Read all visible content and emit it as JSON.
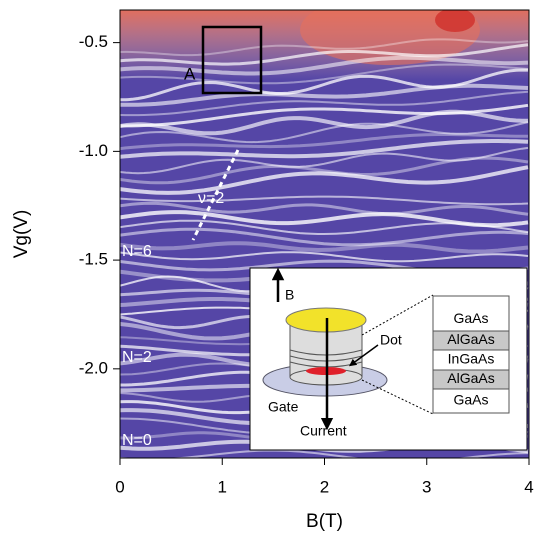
{
  "chart_data": {
    "type": "heatmap",
    "xlabel": "B(T)",
    "ylabel": "Vg(V)",
    "xlim": [
      0,
      4
    ],
    "ylim": [
      -2.41,
      -0.35
    ],
    "xticks": [
      0,
      1,
      2,
      3,
      4
    ],
    "yticks": [
      -0.5,
      {
        "value": -1,
        "label": "-1.0"
      },
      -1.5,
      {
        "value": -2,
        "label": "-2.0"
      }
    ],
    "annotations": {
      "box": "A",
      "filling": "ν=2",
      "n6": "N=6",
      "n2": "N=2",
      "n0": "N=0"
    },
    "inset": {
      "field": "B",
      "dot": "Dot",
      "gate": "Gate",
      "current": "Current",
      "layers": [
        "GaAs",
        "AlGaAs",
        "InGaAs",
        "AlGaAs",
        "GaAs"
      ]
    }
  }
}
